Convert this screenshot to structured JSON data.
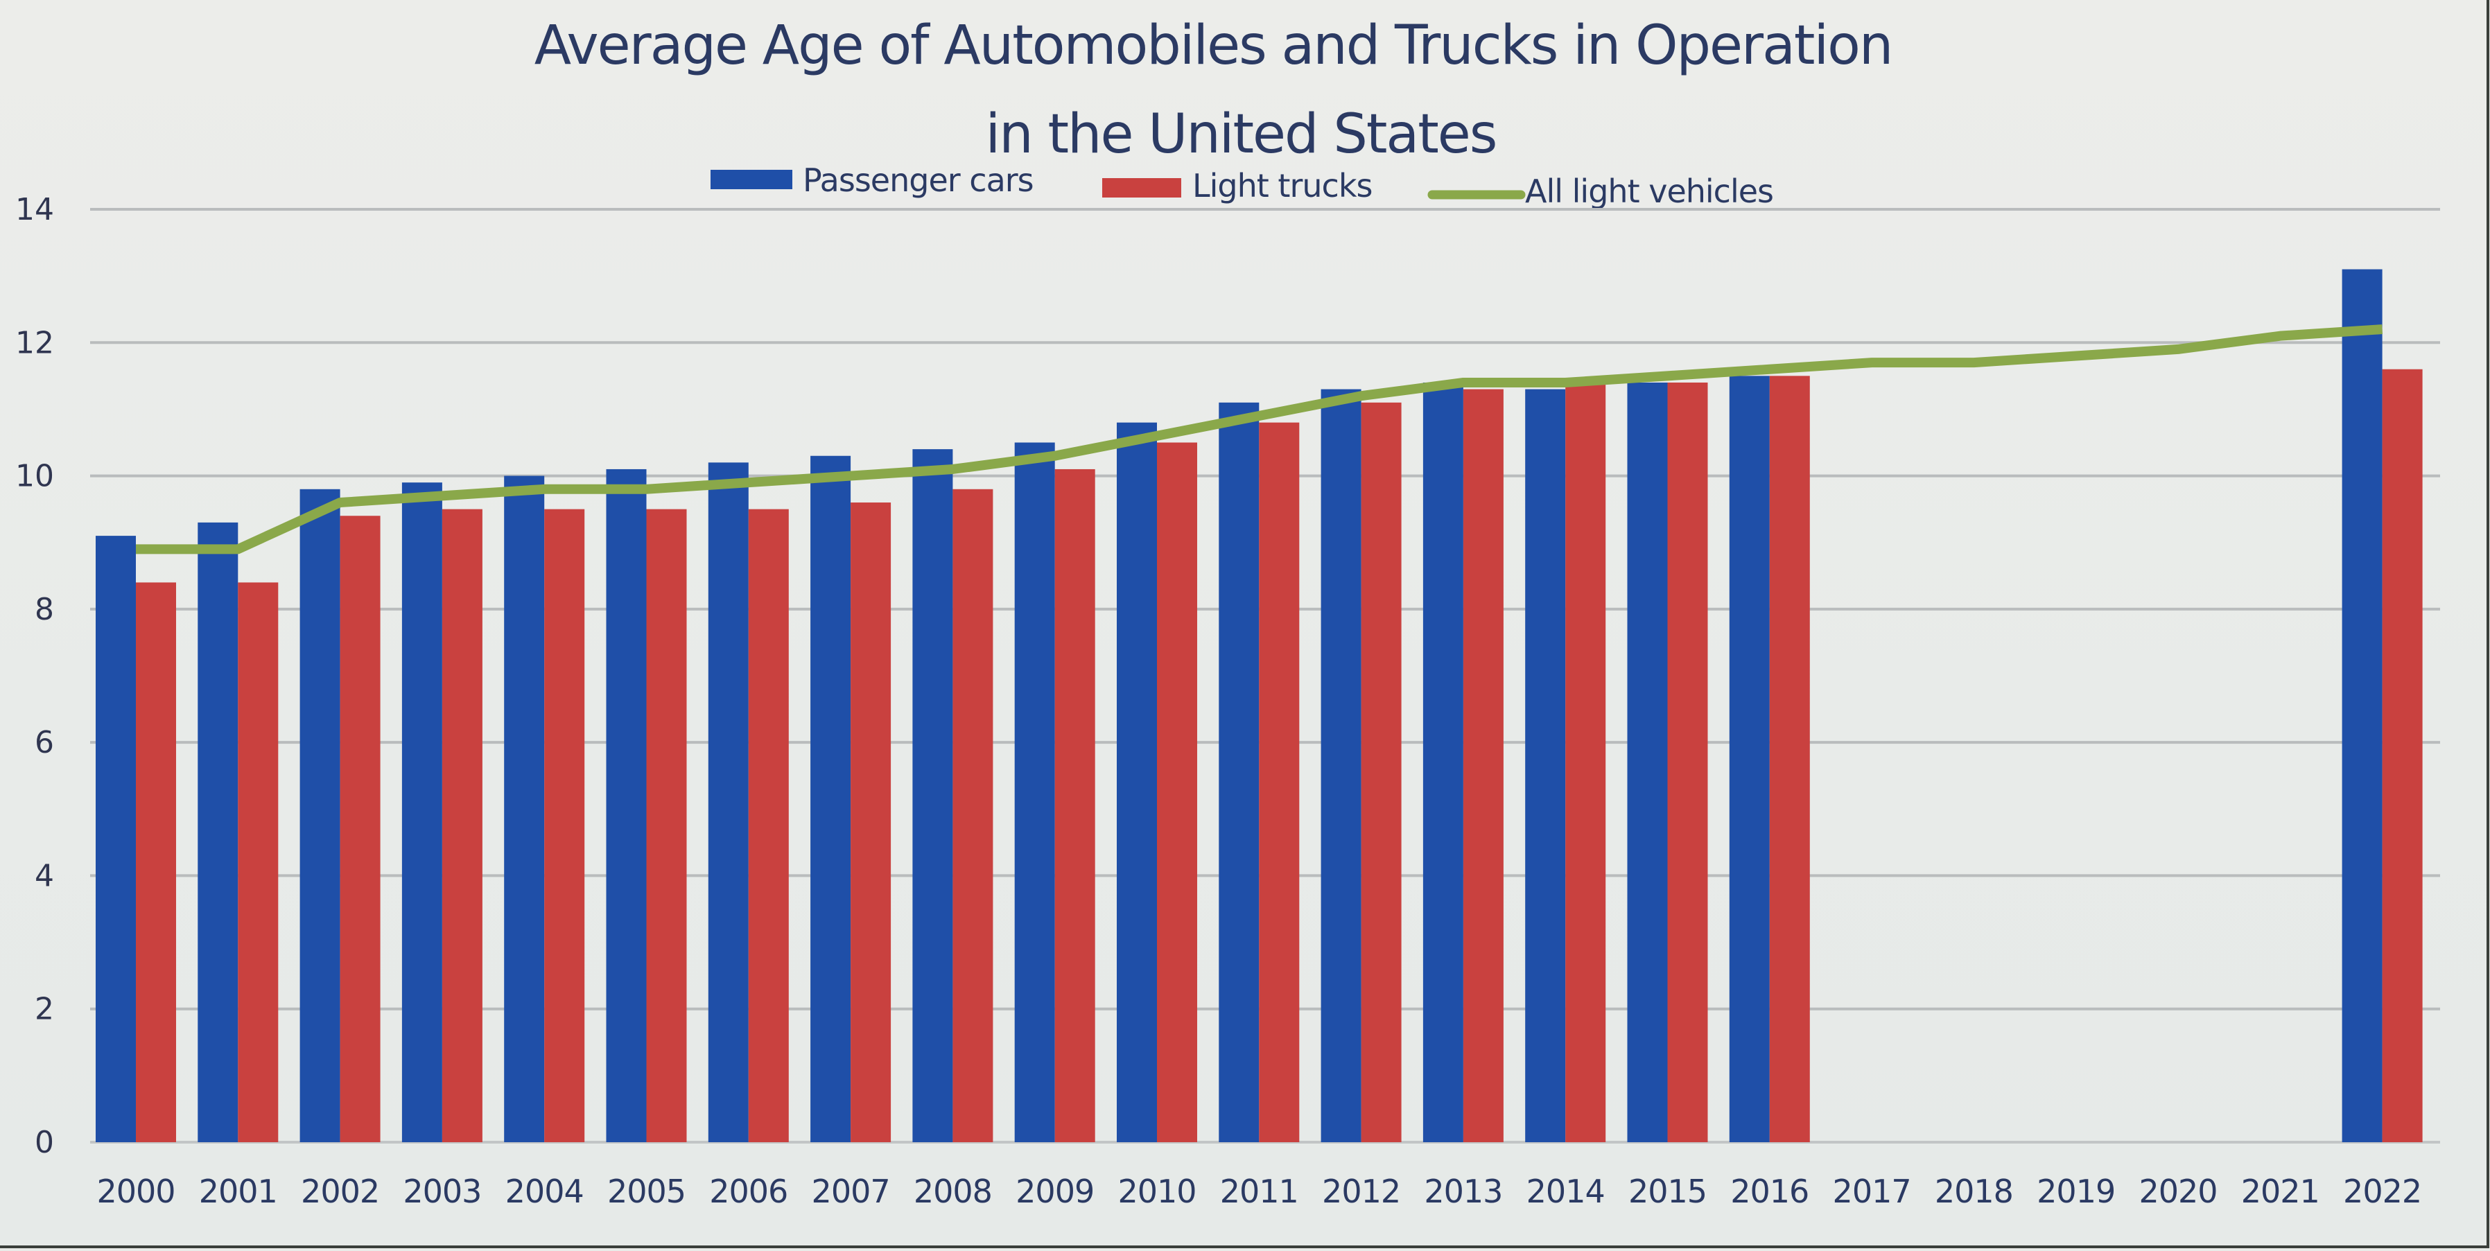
{
  "chart_data": {
    "type": "bar",
    "title": "Average Age of Automobiles and Trucks in Operation in the United States",
    "title_lines": [
      "Average Age of Automobiles and Trucks in Operation",
      "in the United States"
    ],
    "xlabel": "",
    "ylabel": "",
    "ylim": [
      0,
      14
    ],
    "yticks": [
      0,
      2,
      4,
      6,
      8,
      10,
      12,
      14
    ],
    "grid": true,
    "legend_position": "top-center",
    "categories": [
      "2000",
      "2001",
      "2002",
      "2003",
      "2004",
      "2005",
      "2006",
      "2007",
      "2008",
      "2009",
      "2010",
      "2011",
      "2012",
      "2013",
      "2014",
      "2015",
      "2016",
      "2017",
      "2018",
      "2019",
      "2020",
      "2021",
      "2022"
    ],
    "series": [
      {
        "name": "Passenger cars",
        "kind": "bar",
        "color": "#1f4fa8",
        "values": [
          9.1,
          9.3,
          9.8,
          9.9,
          10.0,
          10.1,
          10.2,
          10.3,
          10.4,
          10.5,
          10.8,
          11.1,
          11.3,
          11.4,
          11.3,
          11.4,
          11.5,
          null,
          null,
          null,
          null,
          null,
          13.1
        ]
      },
      {
        "name": "Light trucks",
        "kind": "bar",
        "color": "#c9413f",
        "values": [
          8.4,
          8.4,
          9.4,
          9.5,
          9.5,
          9.5,
          9.5,
          9.6,
          9.8,
          10.1,
          10.5,
          10.8,
          11.1,
          11.3,
          11.4,
          11.4,
          11.5,
          null,
          null,
          null,
          null,
          null,
          11.6
        ]
      },
      {
        "name": "All light vehicles",
        "kind": "line",
        "color": "#8aa84a",
        "values": [
          8.9,
          8.9,
          9.6,
          9.7,
          9.8,
          9.8,
          9.9,
          10.0,
          10.1,
          10.3,
          10.6,
          10.9,
          11.2,
          11.4,
          11.4,
          11.5,
          11.6,
          11.7,
          11.7,
          11.8,
          11.9,
          12.1,
          12.2
        ]
      }
    ]
  },
  "legend": {
    "items": [
      {
        "label": "Passenger cars",
        "color": "#1f4fa8",
        "swatch": "box"
      },
      {
        "label": "Light trucks",
        "color": "#c9413f",
        "swatch": "box"
      },
      {
        "label": "All light vehicles",
        "color": "#8aa84a",
        "swatch": "line"
      }
    ]
  },
  "colors": {
    "background": "#e9ebe8",
    "title": "#2b3a63",
    "gridline": "#b9bcbd"
  }
}
